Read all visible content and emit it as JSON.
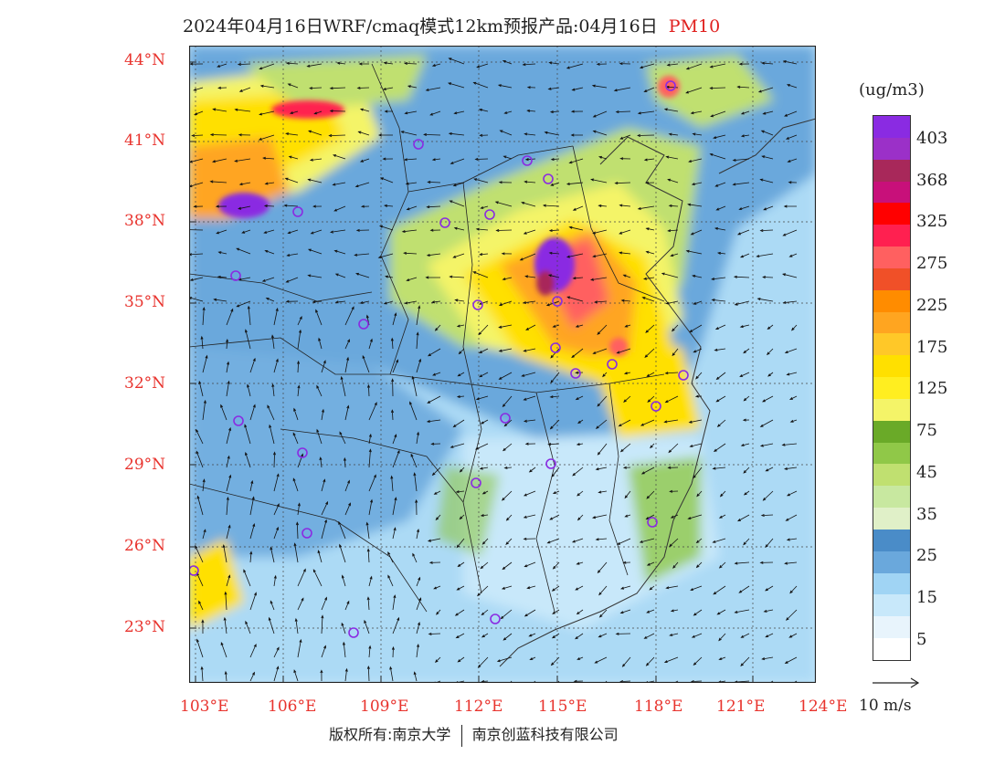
{
  "title": {
    "main": "2024年04月16日WRF/cmaq模式12km预报产品:04月16日",
    "variable": "PM10"
  },
  "units": "(ug/m3)",
  "latitude_labels": [
    "44°N",
    "41°N",
    "38°N",
    "35°N",
    "32°N",
    "29°N",
    "26°N",
    "23°N"
  ],
  "longitude_labels": [
    "103°E",
    "106°E",
    "109°E",
    "112°E",
    "115°E",
    "118°E",
    "121°E",
    "124°E"
  ],
  "legend": {
    "labels": [
      "403",
      "368",
      "325",
      "275",
      "225",
      "175",
      "125",
      "75",
      "45",
      "35",
      "25",
      "15",
      "5"
    ],
    "colors": [
      "#8a2be2",
      "#9b30c8",
      "#a8285a",
      "#c8107a",
      "#ff0000",
      "#ff2050",
      "#ff6060",
      "#f05028",
      "#ff8c00",
      "#ffa520",
      "#ffc828",
      "#ffe000",
      "#ffee20",
      "#f4f468",
      "#6aaa28",
      "#90c848",
      "#c0e070",
      "#c8e8a0",
      "#e0f0c8",
      "#4a8cc8",
      "#6aa8dc",
      "#a0d4f4",
      "#c8e8fa",
      "#e8f4fc",
      "#ffffff"
    ]
  },
  "wind_vector": {
    "label": "10 m/s"
  },
  "copyright": {
    "left": "版权所有:南京大学",
    "right": "南京创蓝科技有限公司"
  },
  "stations_count_note": ""
}
